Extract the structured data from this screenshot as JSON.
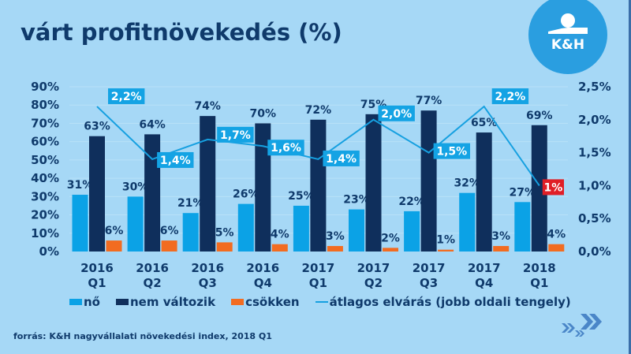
{
  "title": "várt profitnövekedés (%)",
  "logo": {
    "text": "K&H",
    "icon": "kh-bank-logo"
  },
  "source": "forrás: K&H nagyvállalati növekedési index, 2018 Q1",
  "decoration": {
    "icon": "double-chevron-right-icon"
  },
  "colors": {
    "background": "#a6d8f6",
    "no": "#0ba2e6",
    "nem_valtozik": "#0f2f5c",
    "csokken": "#f26c21",
    "line": "#16a0e0",
    "text": "#0f3a6b",
    "highlight_label": "#e01e26"
  },
  "legend": [
    {
      "label": "nő",
      "kind": "bar",
      "color": "#0ba2e6"
    },
    {
      "label": "nem változik",
      "kind": "bar",
      "color": "#0f2f5c"
    },
    {
      "label": "csökken",
      "kind": "bar",
      "color": "#f26c21"
    },
    {
      "label": "átlagos elvárás (jobb oldali tengely)",
      "kind": "line",
      "color": "#16a0e0"
    }
  ],
  "chart_data": {
    "type": "bar",
    "title": "várt profitnövekedés (%)",
    "categories": [
      [
        "2016",
        "Q1"
      ],
      [
        "2016",
        "Q2"
      ],
      [
        "2016",
        "Q3"
      ],
      [
        "2016",
        "Q4"
      ],
      [
        "2017",
        "Q1"
      ],
      [
        "2017",
        "Q2"
      ],
      [
        "2017",
        "Q3"
      ],
      [
        "2017",
        "Q4"
      ],
      [
        "2018",
        "Q1"
      ]
    ],
    "series": [
      {
        "name": "nő",
        "type": "bar",
        "axis": "left",
        "color": "#0ba2e6",
        "values": [
          31,
          30,
          21,
          26,
          25,
          23,
          22,
          32,
          27
        ],
        "labels": [
          "31%",
          "30%",
          "21%",
          "26%",
          "25%",
          "23%",
          "22%",
          "32%",
          "27%"
        ]
      },
      {
        "name": "nem változik",
        "type": "bar",
        "axis": "left",
        "color": "#0f2f5c",
        "values": [
          63,
          64,
          74,
          70,
          72,
          75,
          77,
          65,
          69
        ],
        "labels": [
          "63%",
          "64%",
          "74%",
          "70%",
          "72%",
          "75%",
          "77%",
          "65%",
          "69%"
        ]
      },
      {
        "name": "csökken",
        "type": "bar",
        "axis": "left",
        "color": "#f26c21",
        "values": [
          6,
          6,
          5,
          4,
          3,
          2,
          1,
          3,
          4
        ],
        "labels": [
          "6%",
          "6%",
          "5%",
          "4%",
          "3%",
          "2%",
          "1%",
          "3%",
          "4%"
        ]
      },
      {
        "name": "átlagos elvárás (jobb oldali tengely)",
        "type": "line",
        "axis": "right",
        "color": "#16a0e0",
        "values": [
          2.2,
          1.4,
          1.7,
          1.6,
          1.4,
          2.0,
          1.5,
          2.2,
          1.0
        ],
        "labels": [
          "2,2%",
          "1,4%",
          "1,7%",
          "1,6%",
          "1,4%",
          "2,0%",
          "1,5%",
          "2,2%",
          "1%"
        ],
        "highlight_last": true
      }
    ],
    "y_left": {
      "ylim": [
        0,
        90
      ],
      "ticks": [
        "0%",
        "10%",
        "20%",
        "30%",
        "40%",
        "50%",
        "60%",
        "70%",
        "80%",
        "90%"
      ]
    },
    "y_right": {
      "ylim": [
        0,
        2.5
      ],
      "ticks": [
        "0,0%",
        "0,5%",
        "1,0%",
        "1,5%",
        "2,0%",
        "2,5%"
      ]
    },
    "xlabel": "",
    "ylabel": "",
    "grid": true,
    "legend_position": "bottom"
  }
}
